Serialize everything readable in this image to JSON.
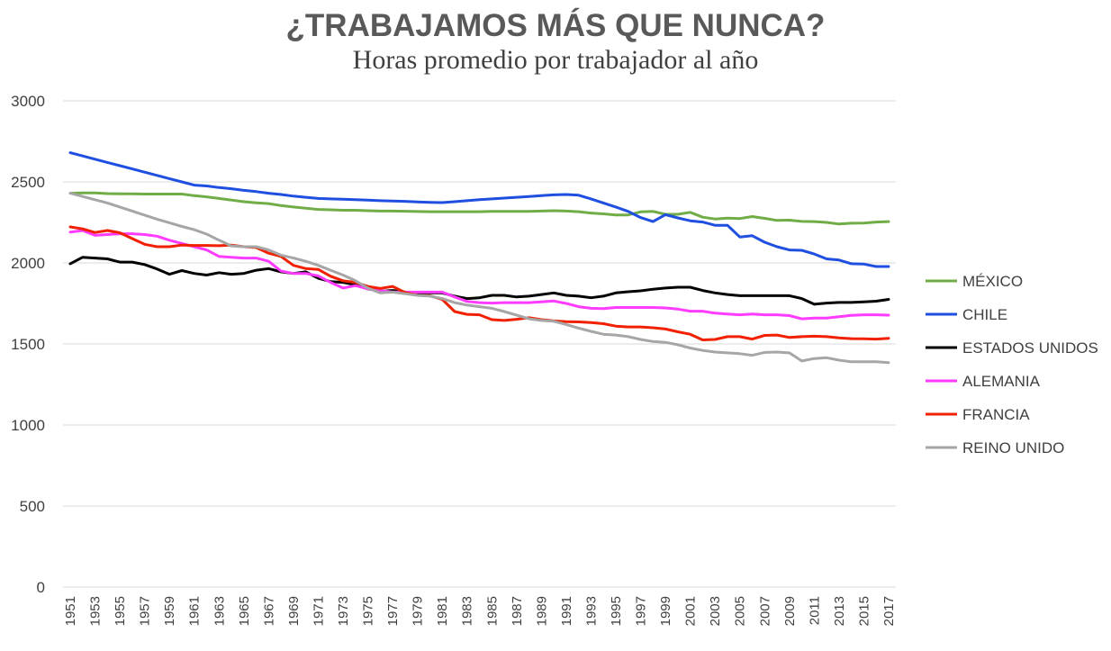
{
  "chart_data": {
    "type": "line",
    "title": "¿TRABAJAMOS MÁS QUE NUNCA?",
    "subtitle": "Horas promedio por trabajador al año",
    "xlabel": "",
    "ylabel": "",
    "ylim": [
      0,
      3000
    ],
    "yticks": [
      0,
      500,
      1000,
      1500,
      2000,
      2500,
      3000
    ],
    "grid": true,
    "legend_position": "right",
    "x": [
      1951,
      1952,
      1953,
      1954,
      1955,
      1956,
      1957,
      1958,
      1959,
      1960,
      1961,
      1962,
      1963,
      1964,
      1965,
      1966,
      1967,
      1968,
      1969,
      1970,
      1971,
      1972,
      1973,
      1974,
      1975,
      1976,
      1977,
      1978,
      1979,
      1980,
      1981,
      1982,
      1983,
      1984,
      1985,
      1986,
      1987,
      1988,
      1989,
      1990,
      1991,
      1992,
      1993,
      1994,
      1995,
      1996,
      1997,
      1998,
      1999,
      2000,
      2001,
      2002,
      2003,
      2004,
      2005,
      2006,
      2007,
      2008,
      2009,
      2010,
      2011,
      2012,
      2013,
      2014,
      2015,
      2016,
      2017
    ],
    "xtick_labels": [
      "1951",
      "1953",
      "1955",
      "1957",
      "1959",
      "1961",
      "1963",
      "1965",
      "1967",
      "1969",
      "1971",
      "1973",
      "1975",
      "1977",
      "1979",
      "1981",
      "1983",
      "1985",
      "1987",
      "1989",
      "1991",
      "1993",
      "1995",
      "1997",
      "1999",
      "2001",
      "2003",
      "2005",
      "2007",
      "2009",
      "2011",
      "2013",
      "2015",
      "2017"
    ],
    "series": [
      {
        "name": "MÉXICO",
        "color": "#70ad47",
        "values": [
          2430,
          2432,
          2432,
          2428,
          2426,
          2426,
          2425,
          2425,
          2425,
          2425,
          2415,
          2408,
          2398,
          2388,
          2378,
          2371,
          2366,
          2354,
          2345,
          2338,
          2330,
          2328,
          2325,
          2325,
          2322,
          2320,
          2320,
          2319,
          2317,
          2316,
          2316,
          2316,
          2316,
          2316,
          2318,
          2318,
          2318,
          2318,
          2320,
          2322,
          2320,
          2316,
          2308,
          2303,
          2296,
          2296,
          2315,
          2318,
          2300,
          2300,
          2312,
          2282,
          2271,
          2276,
          2274,
          2286,
          2275,
          2262,
          2264,
          2256,
          2255,
          2250,
          2240,
          2245,
          2246,
          2252,
          2255
        ]
      },
      {
        "name": "CHILE",
        "color": "#1f4fe0",
        "values": [
          2680,
          2660,
          2640,
          2620,
          2600,
          2580,
          2560,
          2540,
          2520,
          2500,
          2480,
          2475,
          2465,
          2458,
          2448,
          2440,
          2430,
          2422,
          2412,
          2405,
          2398,
          2395,
          2393,
          2390,
          2387,
          2384,
          2382,
          2380,
          2376,
          2374,
          2372,
          2378,
          2384,
          2390,
          2395,
          2400,
          2405,
          2410,
          2415,
          2420,
          2422,
          2418,
          2395,
          2370,
          2345,
          2318,
          2280,
          2255,
          2298,
          2278,
          2260,
          2252,
          2232,
          2232,
          2160,
          2168,
          2128,
          2100,
          2080,
          2078,
          2055,
          2025,
          2018,
          1995,
          1993,
          1978,
          1978
        ]
      },
      {
        "name": "ESTADOS UNIDOS",
        "color": "#000000",
        "values": [
          1995,
          2035,
          2030,
          2025,
          2005,
          2005,
          1990,
          1963,
          1930,
          1953,
          1935,
          1925,
          1940,
          1930,
          1935,
          1955,
          1965,
          1945,
          1935,
          1945,
          1905,
          1885,
          1880,
          1865,
          1840,
          1825,
          1830,
          1820,
          1815,
          1815,
          1815,
          1795,
          1780,
          1785,
          1800,
          1800,
          1790,
          1795,
          1805,
          1815,
          1800,
          1795,
          1785,
          1795,
          1815,
          1822,
          1828,
          1838,
          1845,
          1850,
          1850,
          1830,
          1815,
          1805,
          1798,
          1798,
          1798,
          1798,
          1798,
          1780,
          1745,
          1752,
          1756,
          1756,
          1760,
          1764,
          1775
        ]
      },
      {
        "name": "ALEMANIA",
        "color": "#ff3bff",
        "values": [
          2190,
          2200,
          2170,
          2175,
          2180,
          2180,
          2175,
          2165,
          2140,
          2120,
          2100,
          2080,
          2040,
          2035,
          2030,
          2030,
          2010,
          1950,
          1935,
          1935,
          1920,
          1880,
          1845,
          1860,
          1840,
          1830,
          1820,
          1820,
          1820,
          1820,
          1820,
          1790,
          1762,
          1755,
          1752,
          1755,
          1755,
          1755,
          1760,
          1765,
          1750,
          1730,
          1720,
          1718,
          1725,
          1725,
          1725,
          1725,
          1722,
          1715,
          1702,
          1702,
          1690,
          1685,
          1680,
          1685,
          1680,
          1680,
          1675,
          1655,
          1660,
          1660,
          1668,
          1676,
          1680,
          1680,
          1678
        ]
      },
      {
        "name": "FRANCIA",
        "color": "#f02000",
        "values": [
          2222,
          2210,
          2188,
          2200,
          2186,
          2150,
          2115,
          2100,
          2100,
          2110,
          2108,
          2108,
          2106,
          2110,
          2100,
          2095,
          2060,
          2040,
          1985,
          1965,
          1960,
          1918,
          1890,
          1880,
          1855,
          1843,
          1855,
          1818,
          1800,
          1798,
          1775,
          1700,
          1683,
          1680,
          1650,
          1645,
          1652,
          1662,
          1650,
          1642,
          1638,
          1636,
          1632,
          1625,
          1610,
          1605,
          1605,
          1600,
          1592,
          1575,
          1560,
          1525,
          1528,
          1545,
          1545,
          1530,
          1553,
          1555,
          1540,
          1545,
          1548,
          1545,
          1538,
          1533,
          1532,
          1530,
          1535
        ]
      },
      {
        "name": "REINO UNIDO",
        "color": "#a6a6a6",
        "values": [
          2430,
          2410,
          2390,
          2370,
          2345,
          2320,
          2295,
          2270,
          2248,
          2225,
          2205,
          2178,
          2140,
          2105,
          2100,
          2100,
          2080,
          2048,
          2030,
          2010,
          1985,
          1955,
          1925,
          1890,
          1845,
          1815,
          1820,
          1810,
          1800,
          1795,
          1780,
          1755,
          1740,
          1730,
          1720,
          1700,
          1678,
          1655,
          1645,
          1640,
          1620,
          1598,
          1578,
          1560,
          1555,
          1545,
          1528,
          1515,
          1510,
          1495,
          1475,
          1460,
          1450,
          1445,
          1440,
          1430,
          1448,
          1450,
          1445,
          1395,
          1410,
          1415,
          1400,
          1390,
          1390,
          1390,
          1385
        ]
      }
    ]
  }
}
